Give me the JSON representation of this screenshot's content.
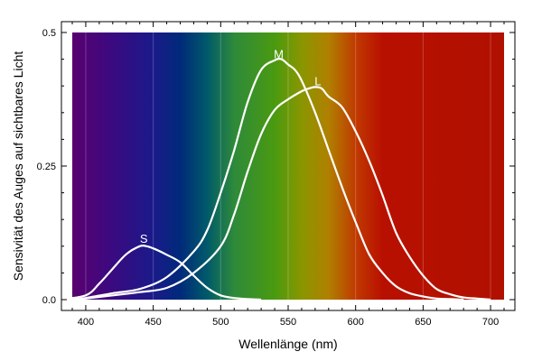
{
  "chart_data": {
    "type": "line",
    "xlabel": "Wellenlänge (nm)",
    "ylabel": "Sensivität des Auges auf sichtbares Licht",
    "xlim": [
      390,
      710
    ],
    "ylim": [
      0,
      0.5
    ],
    "x_ticks": [
      400,
      450,
      500,
      550,
      600,
      650,
      700
    ],
    "y_ticks": [
      0.0,
      0.25,
      0.5
    ],
    "y_tick_labels": [
      "0.0",
      "0.25",
      "0.5"
    ],
    "grid": true,
    "background": "visible-spectrum-gradient",
    "spectrum_colors": [
      {
        "nm": 390,
        "color": "#5a0070"
      },
      {
        "nm": 420,
        "color": "#3a0a80"
      },
      {
        "nm": 450,
        "color": "#1a1a8a"
      },
      {
        "nm": 470,
        "color": "#002a7a"
      },
      {
        "nm": 490,
        "color": "#005a6a"
      },
      {
        "nm": 510,
        "color": "#2e8a3a"
      },
      {
        "nm": 540,
        "color": "#4a9a10"
      },
      {
        "nm": 560,
        "color": "#8a9600"
      },
      {
        "nm": 580,
        "color": "#b08000"
      },
      {
        "nm": 600,
        "color": "#c03a00"
      },
      {
        "nm": 620,
        "color": "#b81000"
      },
      {
        "nm": 710,
        "color": "#b01000"
      }
    ],
    "series": [
      {
        "name": "S",
        "label_at": [
          443,
          0.115
        ],
        "x": [
          380,
          400,
          410,
          420,
          430,
          440,
          445,
          450,
          460,
          470,
          480,
          490,
          500,
          510,
          520,
          530
        ],
        "y": [
          0.0,
          0.008,
          0.03,
          0.058,
          0.085,
          0.1,
          0.1,
          0.096,
          0.084,
          0.07,
          0.045,
          0.022,
          0.008,
          0.003,
          0.001,
          0.0
        ]
      },
      {
        "name": "M",
        "label_at": [
          543,
          0.46
        ],
        "x": [
          390,
          400,
          420,
          440,
          460,
          480,
          490,
          500,
          510,
          520,
          530,
          540,
          545,
          550,
          555,
          560,
          570,
          580,
          590,
          600,
          610,
          620,
          630,
          640,
          650,
          660,
          670,
          680
        ],
        "y": [
          0.0,
          0.003,
          0.012,
          0.02,
          0.042,
          0.09,
          0.13,
          0.2,
          0.28,
          0.37,
          0.43,
          0.448,
          0.45,
          0.44,
          0.43,
          0.41,
          0.35,
          0.28,
          0.21,
          0.145,
          0.085,
          0.05,
          0.025,
          0.012,
          0.006,
          0.002,
          0.001,
          0.0
        ]
      },
      {
        "name": "L",
        "label_at": [
          572,
          0.41
        ],
        "x": [
          390,
          400,
          420,
          440,
          460,
          480,
          500,
          510,
          520,
          530,
          540,
          550,
          560,
          565,
          570,
          575,
          580,
          590,
          600,
          610,
          620,
          630,
          640,
          650,
          660,
          670,
          680,
          690,
          700
        ],
        "y": [
          0.0,
          0.002,
          0.008,
          0.014,
          0.022,
          0.05,
          0.1,
          0.16,
          0.24,
          0.31,
          0.355,
          0.375,
          0.39,
          0.395,
          0.398,
          0.395,
          0.38,
          0.36,
          0.315,
          0.26,
          0.195,
          0.125,
          0.08,
          0.045,
          0.02,
          0.01,
          0.004,
          0.002,
          0.0
        ]
      }
    ]
  }
}
